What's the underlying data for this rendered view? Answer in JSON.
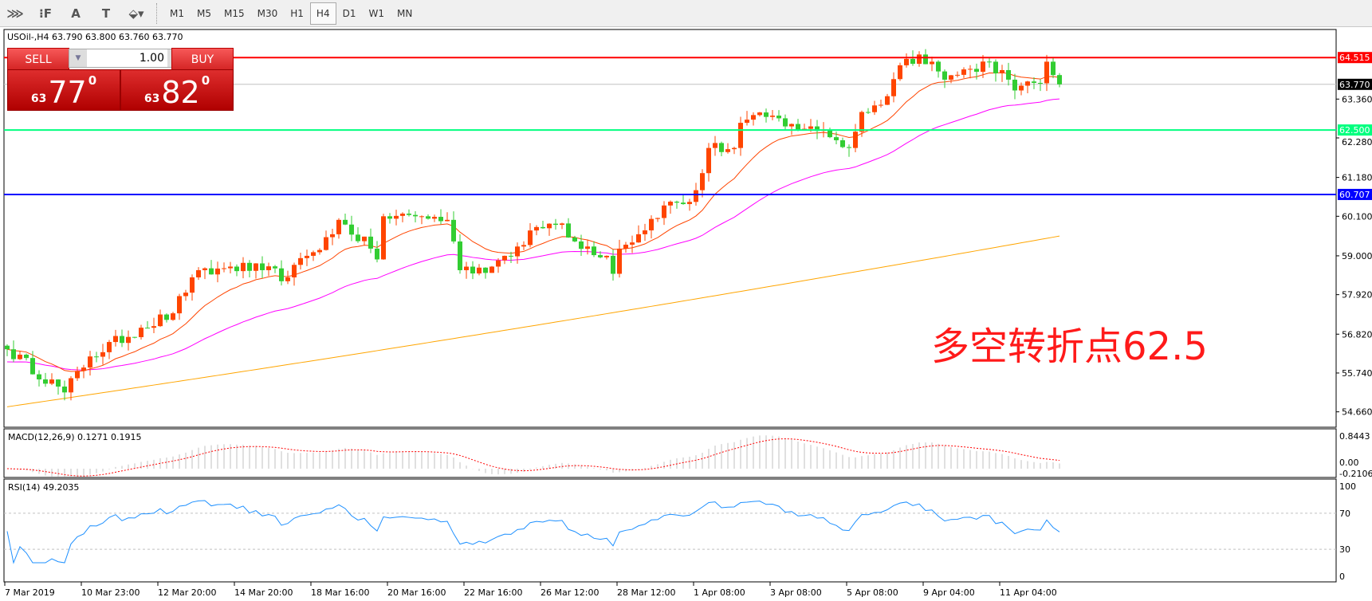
{
  "toolbar": {
    "tools": [
      {
        "name": "elliott-wave-icon",
        "glyph": "⋙"
      },
      {
        "name": "fibonacci-icon",
        "glyph": "⁝F"
      },
      {
        "name": "text-icon",
        "glyph": "A"
      },
      {
        "name": "text-label-icon",
        "glyph": "T"
      },
      {
        "name": "arrows-icon",
        "glyph": "⬙▾"
      }
    ],
    "timeframes": [
      "M1",
      "M5",
      "M15",
      "M30",
      "H1",
      "H4",
      "D1",
      "W1",
      "MN"
    ],
    "selected": "H4"
  },
  "chart": {
    "title": "USOil-,H4  63.790 63.800 63.760 63.770",
    "trade": {
      "sell_label": "SELL",
      "buy_label": "BUY",
      "lot": "1.00",
      "sell_prefix": "63",
      "sell_big": "77",
      "sell_sup": "0",
      "buy_prefix": "63",
      "buy_big": "82",
      "buy_sup": "0"
    },
    "note": "多空转折点62.5",
    "colors": {
      "bull": "#ff4500",
      "bear": "#32cd32",
      "ma_fast": "#ff4500",
      "ma_mid": "#ff00ff",
      "ma_slow": "#ffa500",
      "macd_hist": "#c0c0c0",
      "macd_signal": "#ff0000",
      "rsi": "#1e90ff"
    }
  },
  "chart_data": {
    "type": "candlestick",
    "symbol": "USOil-",
    "timeframe": "H4",
    "price_ticks": [
      "63.360",
      "62.280",
      "61.180",
      "60.100",
      "59.000",
      "57.920",
      "56.820",
      "55.740",
      "54.660"
    ],
    "hlines": [
      {
        "value": 64.515,
        "label": "64.515",
        "color": "#ff0000"
      },
      {
        "value": 62.5,
        "label": "62.500",
        "color": "#00ff7f"
      },
      {
        "value": 60.707,
        "label": "60.707",
        "color": "#0000ff"
      }
    ],
    "current_price": {
      "value": 63.77,
      "label": "63.770"
    },
    "close_keypoints": [
      [
        0,
        56.4
      ],
      [
        9,
        55.2
      ],
      [
        13,
        56.2
      ],
      [
        21,
        57.0
      ],
      [
        26,
        57.4
      ],
      [
        29,
        58.4
      ],
      [
        35,
        58.7
      ],
      [
        40,
        58.6
      ],
      [
        44,
        58.4
      ],
      [
        47,
        59.0
      ],
      [
        51,
        59.6
      ],
      [
        52,
        60.0
      ],
      [
        57,
        59.2
      ],
      [
        58,
        58.9
      ],
      [
        59,
        60.1
      ],
      [
        65,
        60.1
      ],
      [
        69,
        60.0
      ],
      [
        70,
        59.4
      ],
      [
        71,
        58.6
      ],
      [
        76,
        58.7
      ],
      [
        78,
        59.0
      ],
      [
        81,
        59.3
      ],
      [
        83,
        59.8
      ],
      [
        87,
        59.9
      ],
      [
        89,
        59.4
      ],
      [
        94,
        59.0
      ],
      [
        95,
        58.5
      ],
      [
        96,
        59.2
      ],
      [
        99,
        59.6
      ],
      [
        103,
        60.4
      ],
      [
        107,
        60.5
      ],
      [
        109,
        61.3
      ],
      [
        110,
        62.0
      ],
      [
        114,
        62.0
      ],
      [
        115,
        62.7
      ],
      [
        120,
        62.9
      ],
      [
        122,
        62.6
      ],
      [
        126,
        62.6
      ],
      [
        129,
        62.3
      ],
      [
        132,
        62.0
      ],
      [
        134,
        63.0
      ],
      [
        137,
        63.2
      ],
      [
        140,
        64.3
      ],
      [
        143,
        64.6
      ],
      [
        145,
        64.4
      ],
      [
        147,
        63.9
      ],
      [
        151,
        64.2
      ],
      [
        154,
        64.4
      ],
      [
        157,
        63.9
      ],
      [
        158,
        63.6
      ],
      [
        162,
        63.8
      ],
      [
        163,
        64.4
      ],
      [
        165,
        63.77
      ]
    ],
    "ma_slow_range": [
      54.8,
      59.55
    ],
    "macd": {
      "label": "MACD(12,26,9) 0.1271 0.1915",
      "ticks": [
        "0.8443",
        "0.00",
        "-0.2106"
      ]
    },
    "rsi": {
      "label": "RSI(14) 49.2035",
      "ticks": [
        "100",
        "70",
        "30",
        "0"
      ],
      "levels": [
        70,
        30
      ]
    },
    "time_labels": [
      "7 Mar 2019",
      "10 Mar 23:00",
      "12 Mar 20:00",
      "14 Mar 20:00",
      "18 Mar 16:00",
      "20 Mar 16:00",
      "22 Mar 16:00",
      "26 Mar 12:00",
      "28 Mar 12:00",
      "1 Apr 08:00",
      "3 Apr 08:00",
      "5 Apr 08:00",
      "9 Apr 04:00",
      "11 Apr 04:00"
    ]
  }
}
